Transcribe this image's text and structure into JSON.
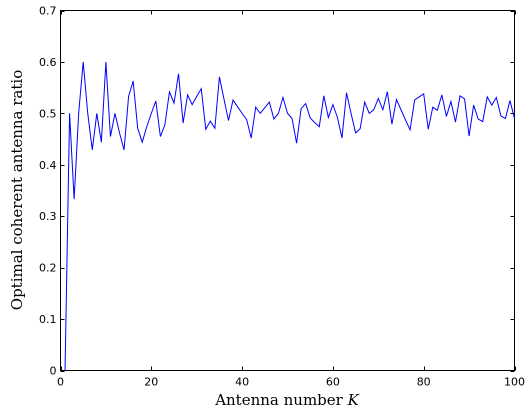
{
  "chart_data": {
    "type": "line",
    "xlabel": "Antenna number K",
    "xlabel_main": "Antenna number ",
    "xlabel_var": "K",
    "ylabel": "Optimal coherent antenna ratio",
    "xlim": [
      0,
      100
    ],
    "ylim": [
      0,
      0.7
    ],
    "xticks": [
      0,
      20,
      40,
      60,
      80,
      100
    ],
    "yticks": [
      0,
      0.1,
      0.2,
      0.3,
      0.4,
      0.5,
      0.6,
      0.7
    ],
    "xtick_labels": [
      "0",
      "20",
      "40",
      "60",
      "80",
      "100"
    ],
    "ytick_labels": [
      "0",
      "0.1",
      "0.2",
      "0.3",
      "0.4",
      "0.5",
      "0.6",
      "0.7"
    ],
    "grid": false,
    "line_color": "#0000ff",
    "series": [
      {
        "x": [
          1,
          2,
          3,
          4,
          5,
          6,
          7,
          8,
          9,
          10,
          11,
          12,
          13,
          14,
          15,
          16,
          17,
          18,
          19,
          20,
          21,
          22,
          23,
          24,
          25,
          26,
          27,
          28,
          29,
          30,
          31,
          32,
          33,
          34,
          35,
          36,
          37,
          38,
          39,
          40,
          41,
          42,
          43,
          44,
          45,
          46,
          47,
          48,
          49,
          50,
          51,
          52,
          53,
          54,
          55,
          56,
          57,
          58,
          59,
          60,
          61,
          62,
          63,
          64,
          65,
          66,
          67,
          68,
          69,
          70,
          71,
          72,
          73,
          74,
          75,
          76,
          77,
          78,
          79,
          80,
          81,
          82,
          83,
          84,
          85,
          86,
          87,
          88,
          89,
          90,
          91,
          92,
          93,
          94,
          95,
          96,
          97,
          98,
          99,
          100
        ],
        "y": [
          0,
          0.5,
          0.333,
          0.5,
          0.6,
          0.5,
          0.429,
          0.5,
          0.444,
          0.6,
          0.455,
          0.5,
          0.462,
          0.429,
          0.533,
          0.563,
          0.471,
          0.444,
          0.474,
          0.5,
          0.524,
          0.455,
          0.478,
          0.542,
          0.52,
          0.577,
          0.481,
          0.536,
          0.517,
          0.533,
          0.548,
          0.469,
          0.485,
          0.471,
          0.571,
          0.528,
          0.486,
          0.526,
          0.513,
          0.5,
          0.488,
          0.452,
          0.512,
          0.5,
          0.511,
          0.522,
          0.489,
          0.5,
          0.531,
          0.5,
          0.49,
          0.442,
          0.509,
          0.519,
          0.491,
          0.482,
          0.474,
          0.534,
          0.492,
          0.517,
          0.492,
          0.452,
          0.54,
          0.5,
          0.462,
          0.47,
          0.522,
          0.5,
          0.507,
          0.529,
          0.507,
          0.542,
          0.479,
          0.527,
          0.507,
          0.487,
          0.468,
          0.526,
          0.532,
          0.538,
          0.469,
          0.512,
          0.506,
          0.536,
          0.494,
          0.523,
          0.483,
          0.534,
          0.528,
          0.456,
          0.516,
          0.489,
          0.484,
          0.532,
          0.516,
          0.531,
          0.495,
          0.49,
          0.525,
          0.49
        ]
      }
    ]
  }
}
